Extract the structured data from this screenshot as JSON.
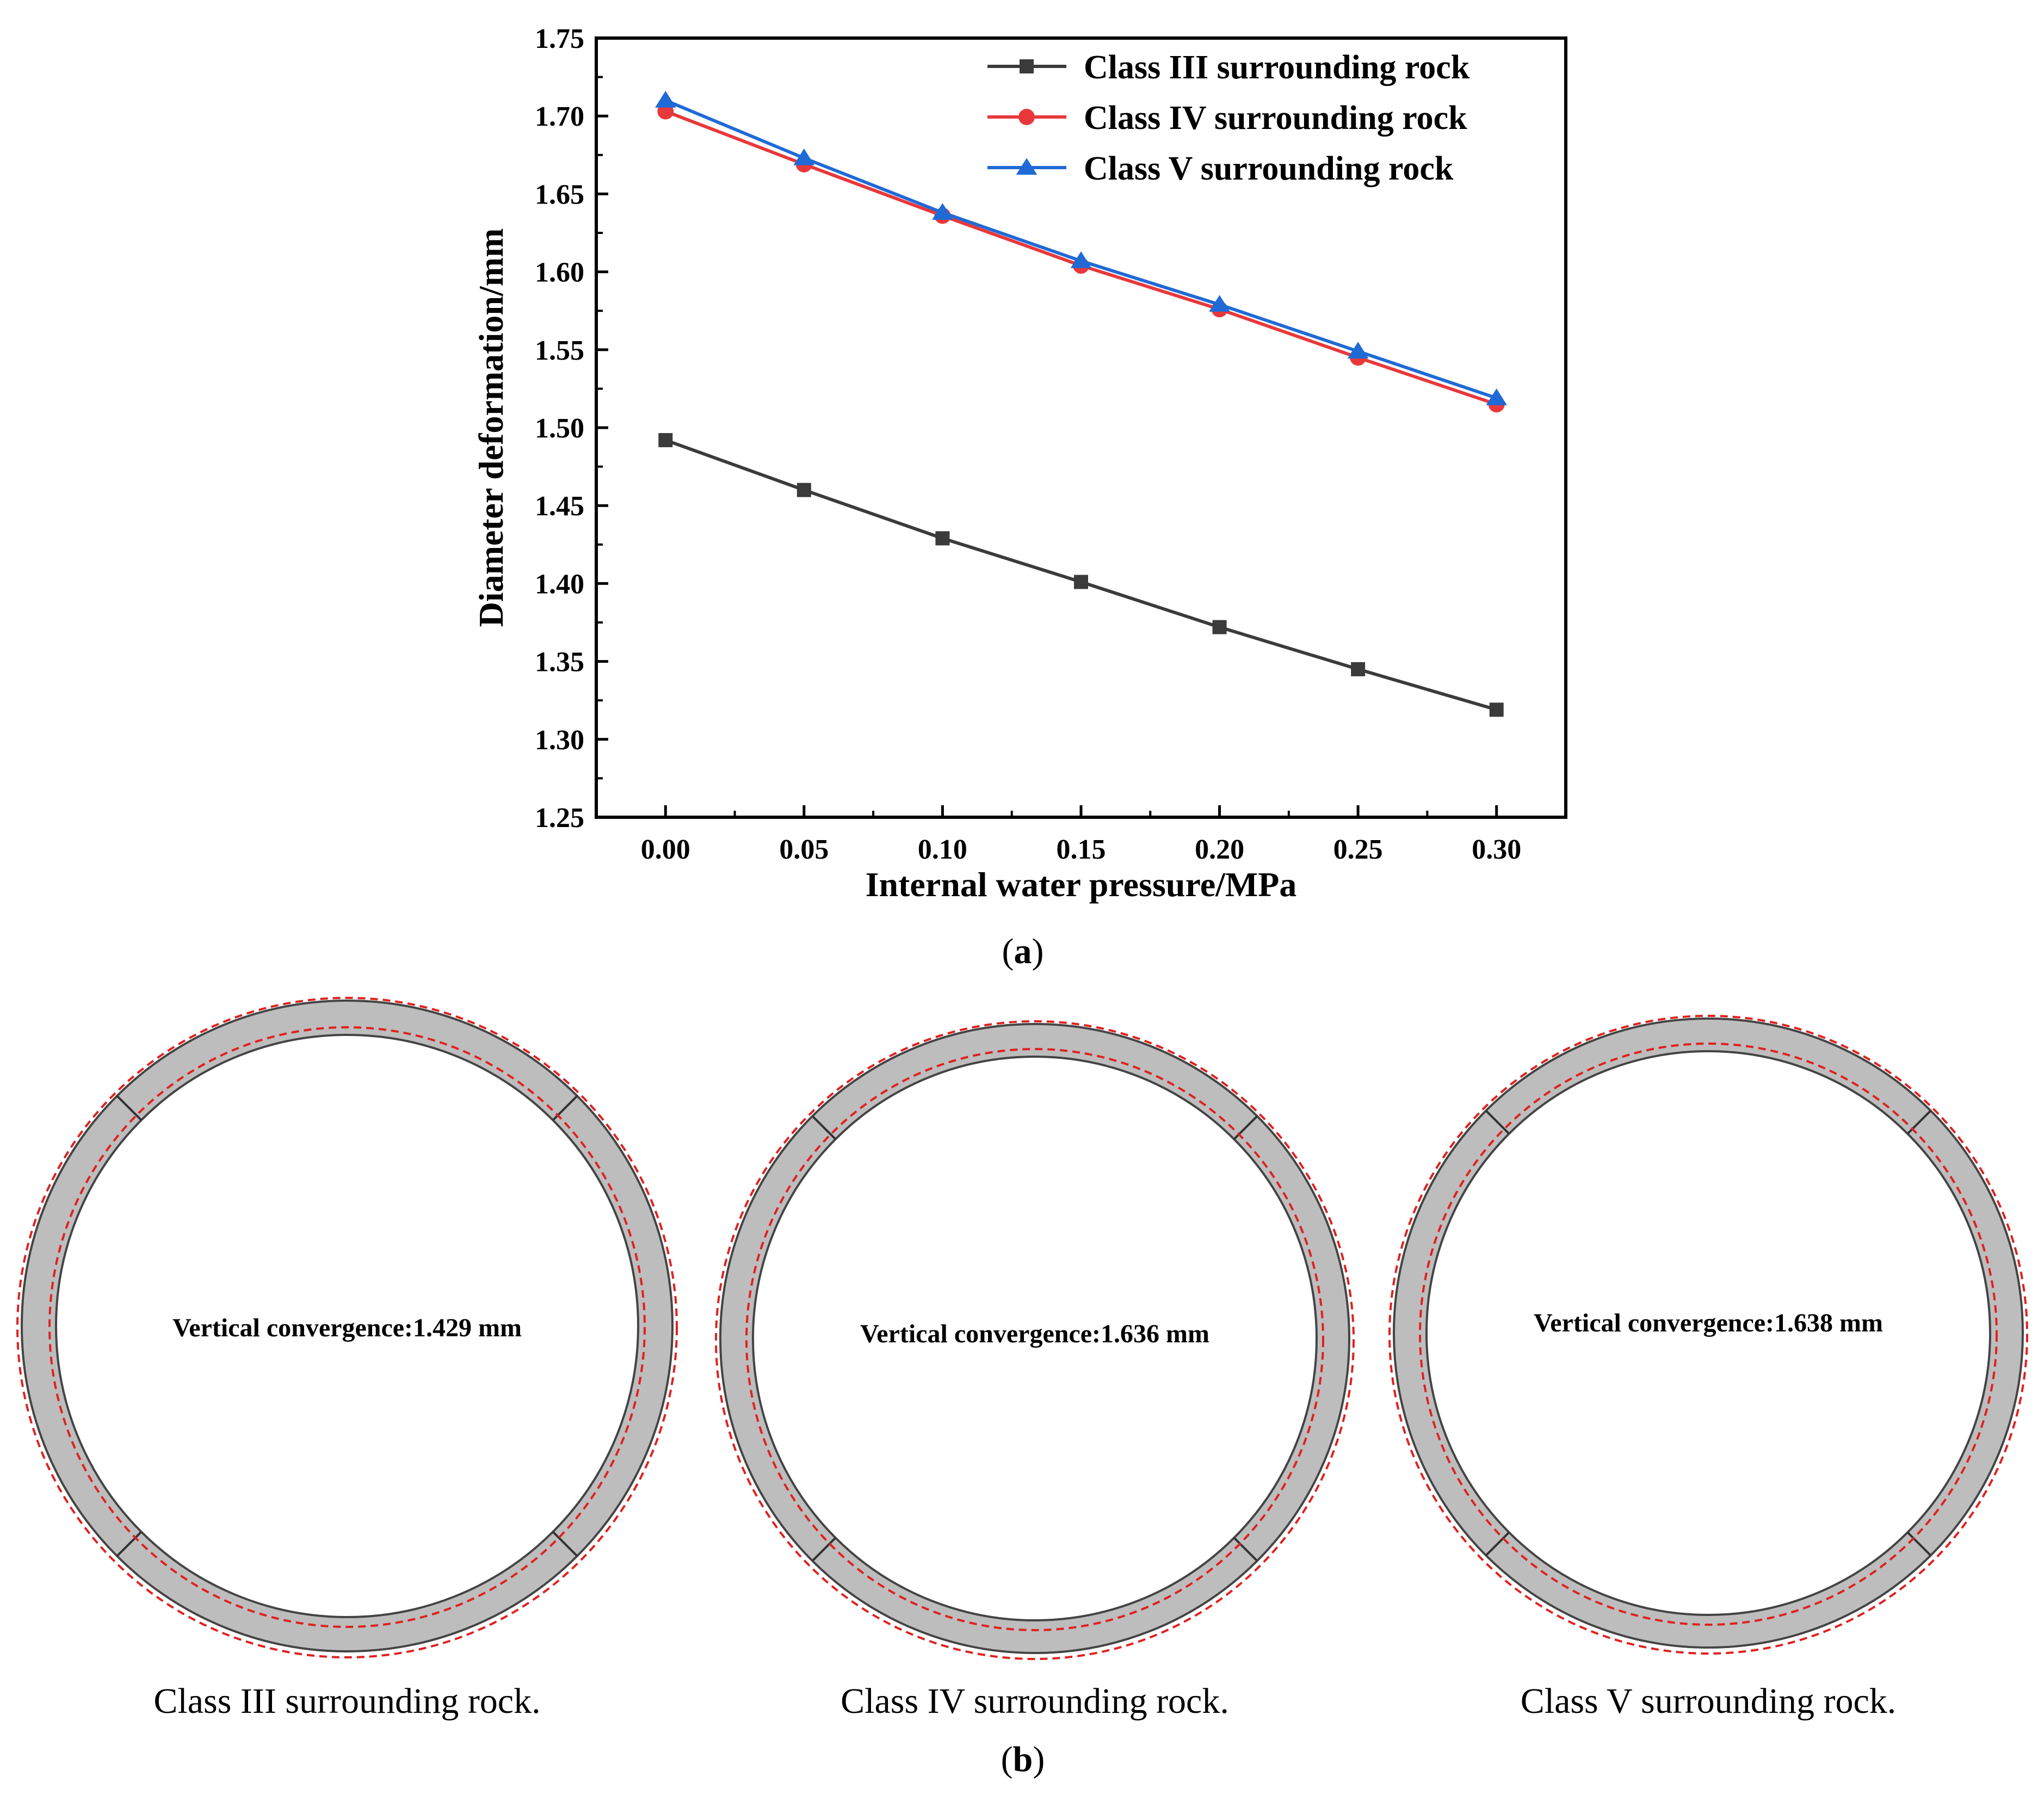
{
  "chart_data": {
    "type": "line",
    "xlabel": "Internal water pressure/MPa",
    "ylabel": "Diameter deformation/mm",
    "xlim": [
      -0.025,
      0.325
    ],
    "ylim": [
      1.25,
      1.75
    ],
    "x": [
      0.0,
      0.05,
      0.1,
      0.15,
      0.2,
      0.25,
      0.3
    ],
    "x_tick_labels": [
      "0.00",
      "0.05",
      "0.10",
      "0.15",
      "0.20",
      "0.25",
      "0.30"
    ],
    "y_tick_labels": [
      "1.25",
      "1.30",
      "1.35",
      "1.40",
      "1.45",
      "1.50",
      "1.55",
      "1.60",
      "1.65",
      "1.70",
      "1.75"
    ],
    "grid": false,
    "legend_position": "top-right",
    "series": [
      {
        "name": "Class III surrounding rock",
        "color": "#3b3b3b",
        "marker": "square",
        "values": [
          1.492,
          1.46,
          1.429,
          1.401,
          1.372,
          1.345,
          1.319
        ]
      },
      {
        "name": "Class IV surrounding rock",
        "color": "#e8383b",
        "marker": "circle",
        "values": [
          1.703,
          1.669,
          1.636,
          1.604,
          1.576,
          1.545,
          1.515
        ]
      },
      {
        "name": "Class V surrounding rock",
        "color": "#1f6ad6",
        "marker": "triangle",
        "values": [
          1.71,
          1.673,
          1.638,
          1.607,
          1.579,
          1.549,
          1.519
        ]
      }
    ]
  },
  "captions": {
    "a": "a",
    "b": "b"
  },
  "panel_b": {
    "items": [
      {
        "label": "Class III surrounding rock.",
        "convergence": "Vertical convergence:1.429 mm"
      },
      {
        "label": "Class IV surrounding rock.",
        "convergence": "Vertical convergence:1.636 mm"
      },
      {
        "label": "Class V surrounding rock.",
        "convergence": "Vertical convergence:1.638 mm"
      }
    ]
  }
}
